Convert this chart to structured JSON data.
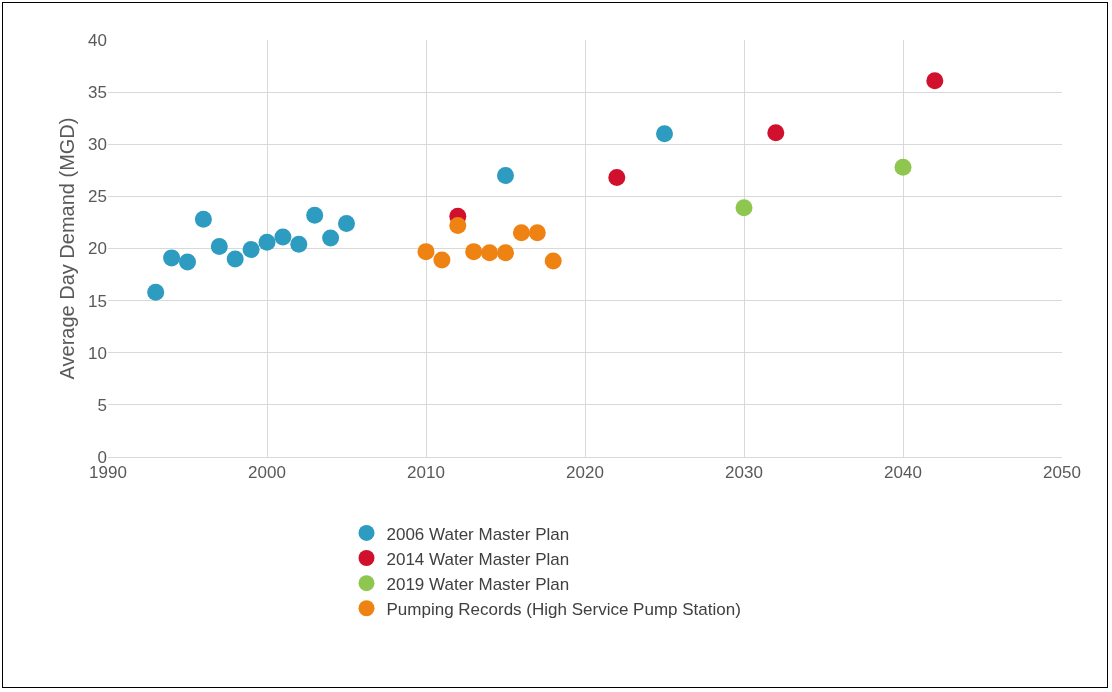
{
  "chart_data": {
    "type": "scatter",
    "ylabel": "Average Day Demand (MGD)",
    "xlim": [
      1990,
      2050
    ],
    "xticks": [
      1990,
      2000,
      2010,
      2020,
      2030,
      2040,
      2050
    ],
    "ylim": [
      0,
      40
    ],
    "yticks": [
      0,
      5,
      10,
      15,
      20,
      25,
      30,
      35,
      40
    ],
    "grid": true,
    "legend": "bottom",
    "marker": "circle",
    "series": [
      {
        "name": "2006 Water Master Plan",
        "color": "#2e9cc0",
        "x": [
          1993,
          1994,
          1995,
          1996,
          1997,
          1998,
          1999,
          2000,
          2001,
          2002,
          2003,
          2004,
          2005,
          2015,
          2025
        ],
        "values": [
          15.8,
          19.1,
          18.7,
          22.8,
          20.2,
          19.0,
          19.9,
          20.6,
          21.1,
          20.4,
          23.2,
          21.0,
          22.4,
          27.0,
          31.0
        ]
      },
      {
        "name": "2014 Water Master Plan",
        "color": "#d0102c",
        "x": [
          2012,
          2022,
          2032,
          2042
        ],
        "values": [
          23.1,
          26.8,
          31.1,
          36.1
        ]
      },
      {
        "name": "2019 Water Master Plan",
        "color": "#8fc650",
        "x": [
          2030,
          2040
        ],
        "values": [
          23.9,
          27.8
        ]
      },
      {
        "name": "Pumping Records (High Service Pump Station)",
        "color": "#ee8212",
        "x": [
          2010,
          2011,
          2012,
          2013,
          2014,
          2015,
          2016,
          2017,
          2018
        ],
        "values": [
          19.7,
          18.9,
          22.2,
          19.7,
          19.6,
          19.6,
          21.5,
          21.5,
          18.8
        ]
      }
    ]
  }
}
